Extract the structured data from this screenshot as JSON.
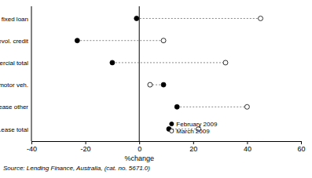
{
  "chart_data": {
    "type": "dot",
    "orientation": "horizontal",
    "categories": [
      "Comm. fixed loan",
      "Comm. revol. credit",
      "Commercial total",
      "Lease motor veh.",
      "Lease other",
      "Lease total"
    ],
    "series": [
      {
        "name": "February 2009",
        "color": "#000000",
        "marker": "filled",
        "values": [
          -1,
          -23,
          -10,
          9,
          14,
          11
        ]
      },
      {
        "name": "March 2009",
        "color": "#000000",
        "marker": "open",
        "values": [
          45,
          9,
          32,
          4,
          40,
          22
        ]
      }
    ],
    "xlim": [
      -40,
      60
    ],
    "xticks": [
      -40,
      -20,
      0,
      20,
      40,
      60
    ],
    "xlabel": "%change",
    "grid": false,
    "legend": "lower right",
    "annotations": [
      "Source: Lending Finance, Australia, (cat. no. 5671.0)"
    ]
  }
}
